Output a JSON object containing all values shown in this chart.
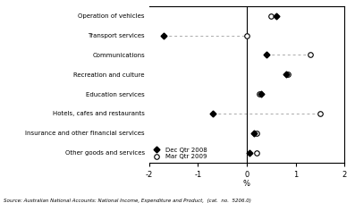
{
  "categories": [
    "Operation of vehicles",
    "Transport services",
    "Communications",
    "Recreation and culture",
    "Education services",
    "Hotels, cafes and restaurants",
    "Insurance and other financial services",
    "Other goods and services"
  ],
  "dec_2008": [
    0.6,
    -1.7,
    0.4,
    0.8,
    0.3,
    -0.7,
    0.15,
    0.05
  ],
  "mar_2009": [
    0.5,
    0.0,
    1.3,
    0.85,
    0.25,
    1.5,
    0.2,
    0.2
  ],
  "xlim": [
    -2,
    2
  ],
  "xticks": [
    -2,
    -1,
    0,
    1,
    2
  ],
  "xlabel": "%",
  "legend_labels": [
    "Dec Qtr 2008",
    "Mar Qtr 2009"
  ],
  "source_text": "Source: Australian National Accounts: National Income, Expenditure and Product,  (cat.  no.  5206.0)",
  "filled_color": "black",
  "open_color": "white",
  "line_color": "#aaaaaa",
  "fig_width": 3.97,
  "fig_height": 2.27,
  "dpi": 100
}
